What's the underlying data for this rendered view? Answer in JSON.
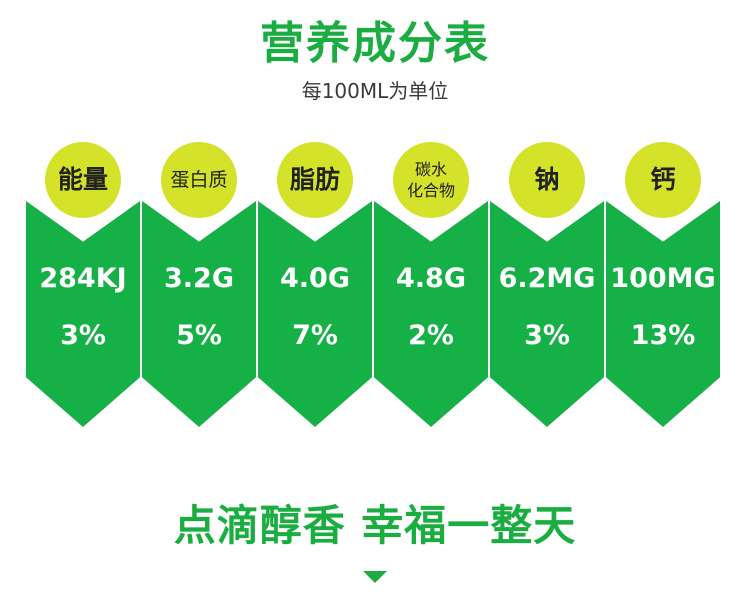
{
  "header": {
    "title": "营养成分表",
    "subtitle": "每100ML为单位"
  },
  "nutrients": [
    {
      "name": "能量",
      "amount": "284KJ",
      "percent": "3%"
    },
    {
      "name": "蛋白质",
      "amount": "3.2G",
      "percent": "5%"
    },
    {
      "name": "脂肪",
      "amount": "4.0G",
      "percent": "7%"
    },
    {
      "name": "碳水\n化合物",
      "amount": "4.8G",
      "percent": "2%"
    },
    {
      "name": "钠",
      "amount": "6.2MG",
      "percent": "3%"
    },
    {
      "name": "钙",
      "amount": "100MG",
      "percent": "13%"
    }
  ],
  "footer": {
    "slogan": "点滴醇香 幸福一整天",
    "arrow_icon": "chevron-down-icon"
  },
  "colors": {
    "primary_green": "#1aad3f",
    "card_green": "#15b146",
    "circle_yellow": "#d4e32a"
  }
}
